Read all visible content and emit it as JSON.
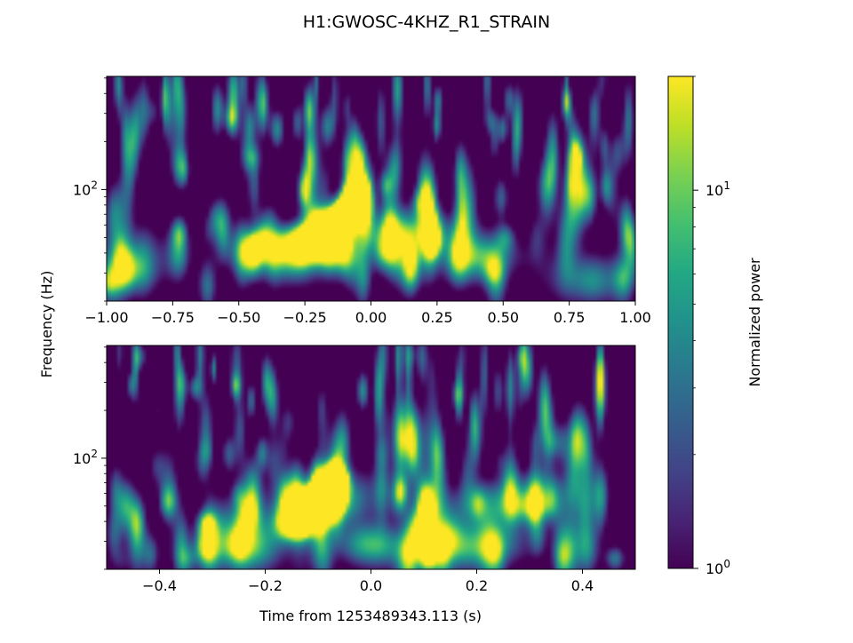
{
  "chart_data": [
    {
      "type": "heatmap",
      "title": "H1:GWOSC-4KHZ_R1_STRAIN",
      "xlabel": "",
      "ylabel": "Frequency (Hz)",
      "xlim": [
        -1.0,
        1.0
      ],
      "yscale": "log",
      "ylim": [
        20,
        512
      ],
      "x_ticks": [
        -1.0,
        -0.75,
        -0.5,
        -0.25,
        0.0,
        0.25,
        0.5,
        0.75,
        1.0
      ],
      "x_tick_labels": [
        "−1.00",
        "−0.75",
        "−0.50",
        "−0.25",
        "0.00",
        "0.25",
        "0.50",
        "0.75",
        "1.00"
      ],
      "y_ticks": [
        100
      ],
      "y_tick_labels": [
        "10^2"
      ],
      "colormap": "viridis",
      "color_scale": "log",
      "chirp": {
        "t_end": -0.05,
        "f_end": 95
      }
    },
    {
      "type": "heatmap",
      "xlabel": "Time from 1253489343.113 (s)",
      "ylabel": "Frequency (Hz)",
      "xlim": [
        -0.5,
        0.5
      ],
      "yscale": "log",
      "ylim": [
        20,
        512
      ],
      "x_ticks": [
        -0.4,
        -0.2,
        0.0,
        0.2,
        0.4
      ],
      "x_tick_labels": [
        "−0.4",
        "−0.2",
        "0.0",
        "0.2",
        "0.4"
      ],
      "y_ticks": [
        100
      ],
      "y_tick_labels": [
        "10^2"
      ],
      "colormap": "viridis",
      "color_scale": "log",
      "chirp": {
        "t_end": -0.07,
        "f_end": 75
      }
    }
  ],
  "colorbar": {
    "label": "Normalized power",
    "scale": "log",
    "range": [
      1,
      20
    ],
    "ticks": [
      1,
      10
    ],
    "tick_labels": [
      "10^0",
      "10^1"
    ]
  },
  "colors": {
    "viridis_low": "#440154",
    "viridis_mid": "#21918c",
    "viridis_high": "#fde725"
  }
}
